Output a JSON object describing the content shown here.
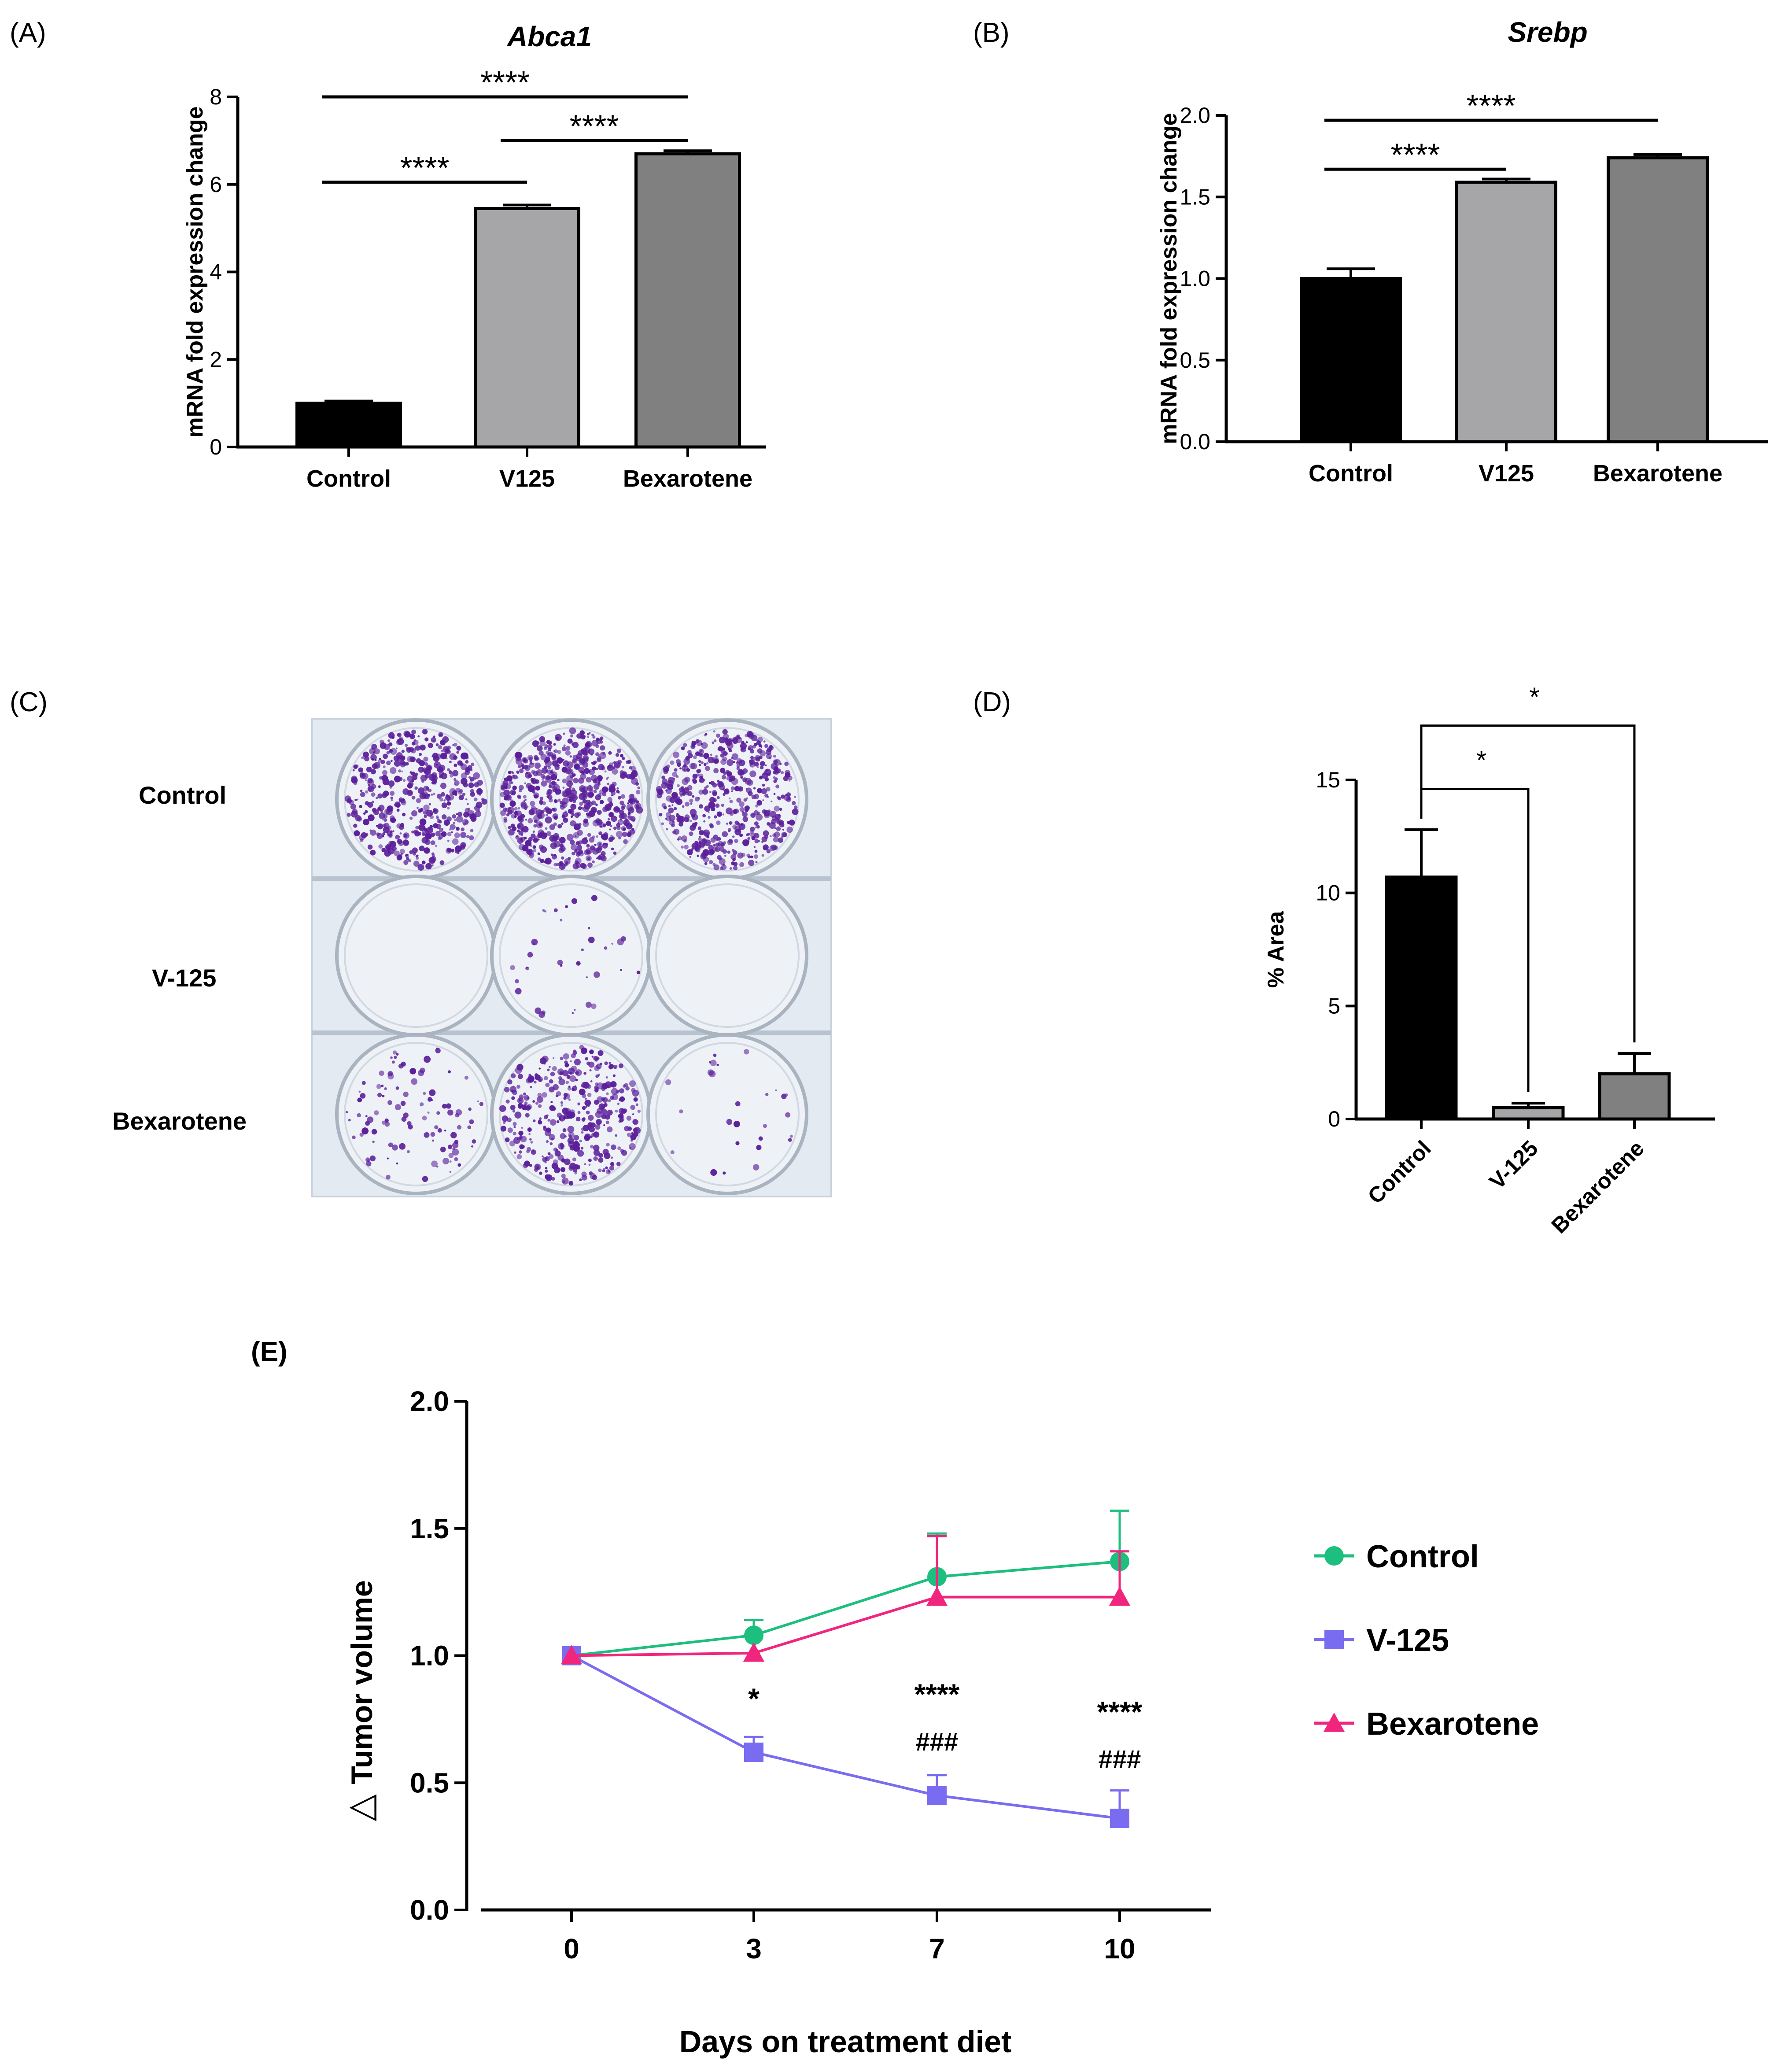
{
  "figure_labels": {
    "a": "(A)",
    "b": "(B)",
    "c": "(C)",
    "d": "(D)",
    "e": "(E)"
  },
  "colors": {
    "control_bar": "#000000",
    "v125_bar": "#a6a6a8",
    "bexarotene_bar": "#808080",
    "control_line": "#1dbf7e",
    "v125_line": "#7a6cf0",
    "bexarotene_line": "#f0267e",
    "stain": "#5b1f9a"
  },
  "plate": {
    "row_labels": [
      "Control",
      "V-125",
      "Bexarotene"
    ],
    "colony_density": [
      [
        0.55,
        0.75,
        0.6
      ],
      [
        0.0,
        0.04,
        0.0
      ],
      [
        0.12,
        0.45,
        0.03
      ]
    ]
  },
  "chart_data": [
    {
      "id": "A",
      "type": "bar",
      "title": "Abca1",
      "categories": [
        "Control",
        "V125",
        "Bexarotene"
      ],
      "values": [
        1.0,
        5.45,
        6.7
      ],
      "errors": [
        0.05,
        0.08,
        0.07
      ],
      "xlabel": "",
      "ylabel": "mRNA fold expression change",
      "ylim": [
        0,
        8
      ],
      "yticks": [
        "0",
        "2",
        "4",
        "6",
        "8"
      ],
      "ytick_values": [
        0,
        2,
        4,
        6,
        8
      ],
      "significance": [
        {
          "from": 0,
          "to": 2,
          "label": "****",
          "level": 8.0
        },
        {
          "from": 1,
          "to": 2,
          "label": "****",
          "level": 7.0
        },
        {
          "from": 0,
          "to": 1,
          "label": "****",
          "level": 6.05
        }
      ]
    },
    {
      "id": "B",
      "type": "bar",
      "title": "Srebp",
      "categories": [
        "Control",
        "V125",
        "Bexarotene"
      ],
      "values": [
        1.0,
        1.59,
        1.74
      ],
      "errors": [
        0.06,
        0.02,
        0.02
      ],
      "xlabel": "",
      "ylabel": "mRNA fold expression change",
      "ylim": [
        0,
        2.0
      ],
      "yticks": [
        "0.0",
        "0.5",
        "1.0",
        "1.5",
        "2.0"
      ],
      "ytick_values": [
        0,
        0.5,
        1.0,
        1.5,
        2.0
      ],
      "significance": [
        {
          "from": 0,
          "to": 2,
          "label": "****",
          "level": 1.97
        },
        {
          "from": 0,
          "to": 1,
          "label": "****",
          "level": 1.67
        }
      ]
    },
    {
      "id": "D",
      "type": "bar",
      "title": "",
      "categories": [
        "Control",
        "V-125",
        "Bexarotene"
      ],
      "values": [
        10.7,
        0.5,
        2.0
      ],
      "errors": [
        2.1,
        0.2,
        0.9
      ],
      "xlabel": "",
      "ylabel": "% Area",
      "ylim": [
        0,
        15
      ],
      "yticks": [
        "0",
        "5",
        "10",
        "15"
      ],
      "ytick_values": [
        0,
        5,
        10,
        15
      ],
      "significance": [
        {
          "from": 0,
          "to": 1,
          "label": "*",
          "level": 14.6
        },
        {
          "from": 0,
          "to": 2,
          "label": "*",
          "level": 17.4
        }
      ]
    },
    {
      "id": "E",
      "type": "line",
      "title": "",
      "x": [
        0,
        3,
        7,
        10
      ],
      "xticks": [
        "0",
        "3",
        "7",
        "10"
      ],
      "xlabel": "Days on treatment diet",
      "ylabel": "Tumor volume",
      "ylabel_symbol": "△",
      "ylim": [
        0,
        2.0
      ],
      "yticks": [
        "0.0",
        "0.5",
        "1.0",
        "1.5",
        "2.0"
      ],
      "ytick_values": [
        0,
        0.5,
        1.0,
        1.5,
        2.0
      ],
      "legend_position": "right",
      "series": [
        {
          "name": "Control",
          "marker": "circle",
          "values": [
            1.0,
            1.08,
            1.31,
            1.37
          ],
          "errors": [
            0,
            0.06,
            0.17,
            0.2
          ]
        },
        {
          "name": "V-125",
          "marker": "square",
          "values": [
            1.0,
            0.62,
            0.45,
            0.36
          ],
          "errors": [
            0,
            0.06,
            0.08,
            0.11
          ]
        },
        {
          "name": "Bexarotene",
          "marker": "triangle",
          "values": [
            1.0,
            1.01,
            1.23,
            1.23
          ],
          "errors": [
            0,
            0.0,
            0.24,
            0.18
          ]
        }
      ],
      "annotations": [
        {
          "x": 3,
          "stars": "*",
          "hashes": ""
        },
        {
          "x": 7,
          "stars": "****",
          "hashes": "###"
        },
        {
          "x": 10,
          "stars": "****",
          "hashes": "###"
        }
      ]
    }
  ]
}
